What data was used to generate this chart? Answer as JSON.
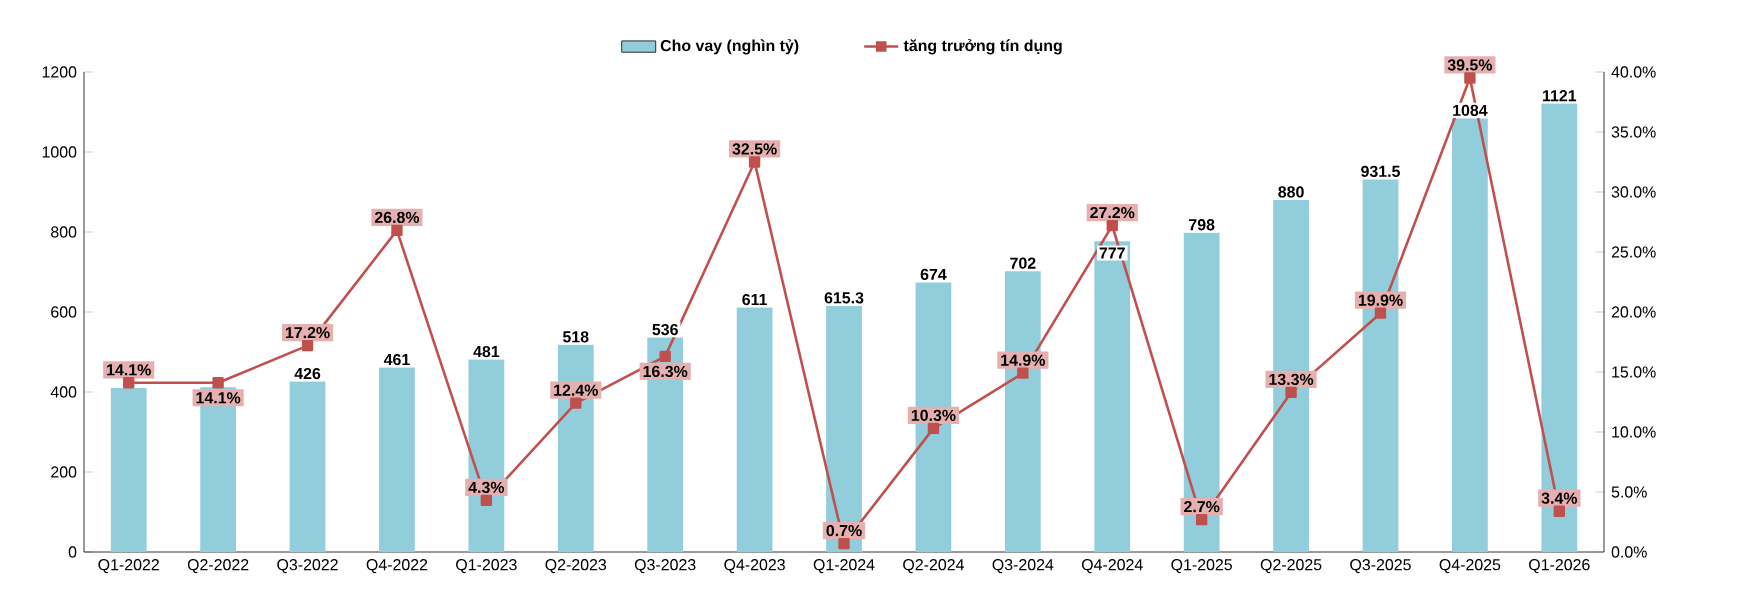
{
  "chart_data": {
    "type": "bar",
    "categories": [
      "Q1-2022",
      "Q2-2022",
      "Q3-2022",
      "Q4-2022",
      "Q1-2023",
      "Q2-2023",
      "Q3-2023",
      "Q4-2023",
      "Q1-2024",
      "Q2-2024",
      "Q3-2024",
      "Q4-2024",
      "Q1-2025",
      "Q2-2025",
      "Q3-2025",
      "Q4-2025",
      "Q1-2026"
    ],
    "series": [
      {
        "name": "Cho vay (nghìn tỷ)",
        "color": "#92cddc",
        "values": [
          410,
          412,
          426,
          461,
          481,
          518,
          536,
          611,
          615.3,
          674,
          702,
          777,
          798,
          880,
          931.5,
          1084,
          1121
        ],
        "value_labels": [
          null,
          null,
          "426",
          "461",
          "481",
          "518",
          "536",
          "611",
          "615.3",
          "674",
          "702",
          "777",
          "798",
          "880",
          "931.5",
          "1084",
          "1121"
        ]
      },
      {
        "name": "tăng trưởng tín dụng",
        "type": "line",
        "axis": "y2",
        "color": "#c0504d",
        "marker": "square",
        "line_style": "solid",
        "values": [
          14.1,
          14.1,
          17.2,
          26.8,
          4.3,
          12.4,
          16.3,
          32.5,
          0.7,
          10.3,
          14.9,
          27.2,
          2.7,
          13.3,
          19.9,
          39.5,
          3.4
        ],
        "value_labels": [
          "14.1%",
          "14.1%",
          "17.2%",
          "26.8%",
          "4.3%",
          "12.4%",
          "16.3%",
          "32.5%",
          "0.7%",
          "10.3%",
          "14.9%",
          "27.2%",
          "2.7%",
          "13.3%",
          "19.9%",
          "39.5%",
          "3.4%"
        ]
      }
    ],
    "ylim": [
      0,
      1200
    ],
    "yticks": [
      0,
      200,
      400,
      600,
      800,
      1000,
      1200
    ],
    "y2lim": [
      0,
      40
    ],
    "y2ticks": [
      {
        "value": 0,
        "label": "0.0%"
      },
      {
        "value": 5,
        "label": "5.0%"
      },
      {
        "value": 10,
        "label": "10.0%"
      },
      {
        "value": 15,
        "label": "15.0%"
      },
      {
        "value": 20,
        "label": "20.0%"
      },
      {
        "value": 25,
        "label": "25.0%"
      },
      {
        "value": 30,
        "label": "30.0%"
      },
      {
        "value": 35,
        "label": "35.0%"
      },
      {
        "value": 40,
        "label": "40.0%"
      }
    ],
    "grid": false,
    "legend": "top"
  }
}
